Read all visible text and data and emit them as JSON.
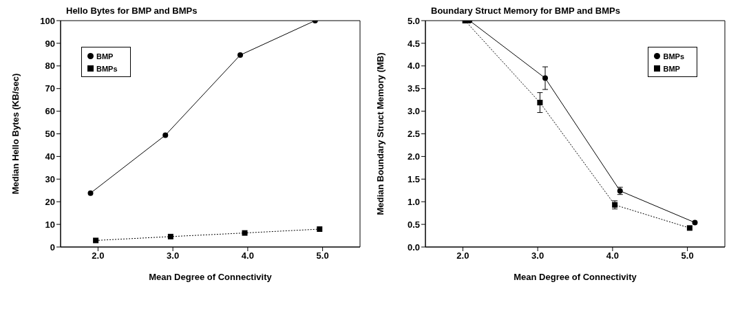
{
  "chart_data": [
    {
      "type": "line",
      "title": "Hello Bytes for BMP and BMPs",
      "xlabel": "Mean Degree of Connectivity",
      "ylabel": "Median Hello Bytes (KB/sec)",
      "xlim": [
        1.5,
        5.5
      ],
      "xticks": [
        {
          "value": 2,
          "label": "2.0"
        },
        {
          "value": 3,
          "label": "3.0"
        },
        {
          "value": 4,
          "label": "4.0"
        },
        {
          "value": 5,
          "label": "5.0"
        }
      ],
      "ylim": [
        0,
        100
      ],
      "yticks": [
        0,
        10,
        20,
        30,
        40,
        50,
        60,
        70,
        80,
        90,
        100
      ],
      "legend": "top left",
      "grid": false,
      "series": [
        {
          "name": "BMP",
          "color": "#000000",
          "marker": "circle",
          "line_style": "solid",
          "x": [
            1.9,
            2.9,
            3.9,
            4.9
          ],
          "values": [
            23.8,
            49.4,
            84.8,
            100
          ]
        },
        {
          "name": "BMPs",
          "color": "#000000",
          "marker": "square",
          "line_style": "dotted",
          "x": [
            1.97,
            2.97,
            3.96,
            4.96
          ],
          "values": [
            2.9,
            4.6,
            6.2,
            7.9
          ]
        }
      ]
    },
    {
      "type": "line",
      "title": "Boundary Struct Memory for BMP and BMPs",
      "xlabel": "Mean Degree of Connectivity",
      "ylabel": "Median Boundary Struct Memory (MB)",
      "xlim": [
        1.5,
        5.5
      ],
      "xticks": [
        {
          "value": 2,
          "label": "2.0"
        },
        {
          "value": 3,
          "label": "3.0"
        },
        {
          "value": 4,
          "label": "4.0"
        },
        {
          "value": 5,
          "label": "5.0"
        }
      ],
      "ylim": [
        0,
        5
      ],
      "yticks": [
        {
          "value": 0,
          "label": "0.0"
        },
        {
          "value": 0.5,
          "label": "0.5"
        },
        {
          "value": 1,
          "label": "1.0"
        },
        {
          "value": 1.5,
          "label": "1.5"
        },
        {
          "value": 2,
          "label": "2.0"
        },
        {
          "value": 2.5,
          "label": "2.5"
        },
        {
          "value": 3,
          "label": "3.0"
        },
        {
          "value": 3.5,
          "label": "3.5"
        },
        {
          "value": 4,
          "label": "4.0"
        },
        {
          "value": 4.5,
          "label": "4.5"
        },
        {
          "value": 5,
          "label": "5.0"
        }
      ],
      "legend": "top right",
      "grid": false,
      "series": [
        {
          "name": "BMPs",
          "color": "#000000",
          "marker": "circle",
          "line_style": "solid",
          "x": [
            2.09,
            3.1,
            4.1,
            5.1
          ],
          "values": [
            5.0,
            3.73,
            1.24,
            0.54
          ],
          "errors": [
            null,
            0.25,
            0.08,
            null
          ]
        },
        {
          "name": "BMP",
          "color": "#000000",
          "marker": "square",
          "line_style": "dotted",
          "x": [
            2.03,
            3.03,
            4.03,
            5.03
          ],
          "values": [
            5.0,
            3.19,
            0.93,
            0.42
          ],
          "errors": [
            null,
            0.22,
            0.09,
            null
          ]
        }
      ]
    }
  ]
}
